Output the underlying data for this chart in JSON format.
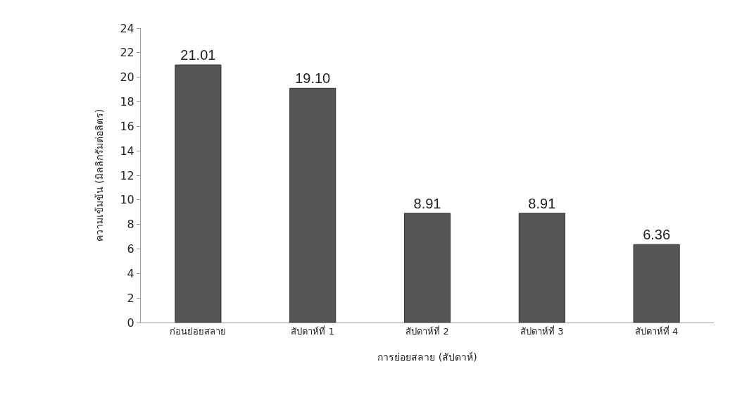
{
  "chart_data": {
    "type": "bar",
    "xlabel": "การย่อยสลาย (สัปดาห์)",
    "ylabel": "ความเข้มข้น (มิลลิกรัมต่อลิตร)",
    "categories": [
      "ก่อนย่อยสลาย",
      "สัปดาห์ที่ 1",
      "สัปดาห์ที่ 2",
      "สัปดาห์ที่ 3",
      "สัปดาห์ที่ 4"
    ],
    "values": [
      21.01,
      19.1,
      8.91,
      8.91,
      6.36
    ],
    "value_labels": [
      "21.01",
      "19.10",
      "8.91",
      "8.91",
      "6.36"
    ],
    "color": "#555555",
    "ylim": [
      0,
      24
    ],
    "yticks": [
      0,
      2,
      4,
      6,
      8,
      10,
      12,
      14,
      16,
      18,
      20,
      22,
      24
    ],
    "grid": false
  }
}
